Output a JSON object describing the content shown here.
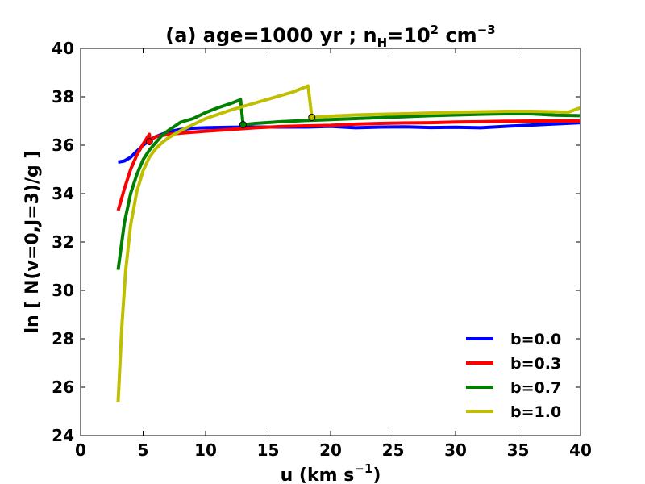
{
  "chart_data": {
    "type": "line",
    "title": {
      "prefix": "(a) age=1000 yr ; n",
      "sub": "H",
      "mid": "=10",
      "sup": "2",
      "suffix": " cm",
      "sup2": "−3"
    },
    "xlabel": {
      "prefix": "u (km s",
      "sup": "−1",
      "suffix": ")"
    },
    "ylabel": "ln [ N(v=0,J=3)/g ]",
    "xlim": [
      0,
      40
    ],
    "ylim": [
      24,
      40
    ],
    "xticks": [
      0,
      5,
      10,
      15,
      20,
      25,
      30,
      35,
      40
    ],
    "yticks": [
      24,
      26,
      28,
      30,
      32,
      34,
      36,
      38,
      40
    ],
    "legend_position": "bottom-right",
    "series": [
      {
        "name": "b=0.0",
        "color": "#0000ff",
        "x": [
          3,
          3.5,
          4,
          4.5,
          5,
          5.5,
          6,
          7,
          8,
          9,
          10,
          12,
          14,
          16,
          18,
          20,
          22,
          24,
          26,
          28,
          30,
          32,
          34,
          36,
          38,
          40
        ],
        "y": [
          35.3,
          35.35,
          35.5,
          35.75,
          36.0,
          36.2,
          36.35,
          36.55,
          36.65,
          36.7,
          36.72,
          36.74,
          36.75,
          36.75,
          36.75,
          36.78,
          36.72,
          36.75,
          36.76,
          36.73,
          36.74,
          36.72,
          36.78,
          36.83,
          36.88,
          36.93
        ]
      },
      {
        "name": "b=0.3",
        "color": "#ff0000",
        "x": [
          3,
          3.5,
          4,
          4.5,
          5,
          5.3,
          5.5,
          5.55,
          5.7,
          6,
          7,
          8,
          10,
          12,
          14,
          16,
          18,
          20,
          22,
          24,
          26,
          28,
          30,
          32,
          34,
          36,
          38,
          40
        ],
        "y": [
          33.3,
          34.2,
          35.0,
          35.6,
          36.05,
          36.3,
          36.45,
          36.15,
          36.25,
          36.35,
          36.45,
          36.5,
          36.58,
          36.65,
          36.72,
          36.77,
          36.8,
          36.82,
          36.87,
          36.9,
          36.92,
          36.93,
          36.96,
          36.97,
          36.99,
          37.0,
          37.0,
          37.0
        ],
        "markers": [
          {
            "x": 5.5,
            "y": 36.15
          }
        ]
      },
      {
        "name": "b=0.7",
        "color": "#008000",
        "x": [
          3,
          3.5,
          4,
          4.5,
          5,
          5.5,
          6,
          6.5,
          7,
          8,
          9,
          10,
          11,
          12,
          12.8,
          13.0,
          14,
          16,
          18,
          20,
          22,
          24,
          26,
          28,
          30,
          32,
          34,
          36,
          38,
          40
        ],
        "y": [
          30.85,
          32.8,
          34.0,
          34.8,
          35.4,
          35.8,
          36.1,
          36.4,
          36.6,
          36.95,
          37.1,
          37.35,
          37.55,
          37.72,
          37.88,
          36.85,
          36.9,
          36.97,
          37.02,
          37.06,
          37.1,
          37.14,
          37.18,
          37.22,
          37.25,
          37.28,
          37.3,
          37.3,
          37.24,
          37.22
        ],
        "markers": [
          {
            "x": 13.0,
            "y": 36.85
          }
        ]
      },
      {
        "name": "b=1.0",
        "color": "#bfbf00",
        "x": [
          3,
          3.3,
          3.6,
          4,
          4.5,
          5,
          5.5,
          6,
          6.5,
          7,
          8,
          9,
          10,
          12,
          14,
          16,
          17,
          18.2,
          18.5,
          20,
          22,
          24,
          26,
          28,
          30,
          32,
          34,
          36,
          38,
          39,
          40
        ],
        "y": [
          25.4,
          28.5,
          30.8,
          32.7,
          34.1,
          34.95,
          35.5,
          35.85,
          36.1,
          36.3,
          36.6,
          36.85,
          37.1,
          37.45,
          37.75,
          38.05,
          38.2,
          38.45,
          37.15,
          37.2,
          37.25,
          37.28,
          37.3,
          37.33,
          37.36,
          37.38,
          37.4,
          37.4,
          37.38,
          37.36,
          37.55
        ],
        "markers": [
          {
            "x": 18.5,
            "y": 37.15
          }
        ]
      }
    ]
  }
}
